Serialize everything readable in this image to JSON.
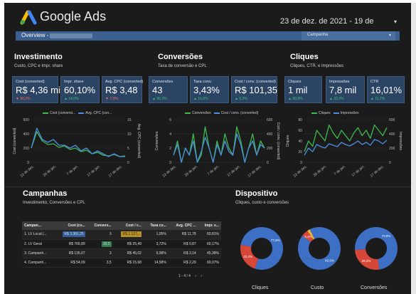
{
  "header": {
    "brand": "Google Ads",
    "date_range": "23 de dez. de 2021 - 19 de",
    "caret": "▾"
  },
  "filters": {
    "overview_label": "Overview -",
    "campaign_dropdown": "Campanha",
    "caret": "▾"
  },
  "sections": {
    "investimento": {
      "title": "Investimento",
      "subtitle": "Custo, CPC e Impr. share"
    },
    "conversoes": {
      "title": "Conversões",
      "subtitle": "Taxa de conversão e CPL"
    },
    "cliques": {
      "title": "Cliques",
      "subtitle": "Cliques, CTR, e Impressões"
    },
    "campanhas": {
      "title": "Campanhas",
      "subtitle": "Investimento, Conversões e CPL"
    },
    "dispositivo": {
      "title": "Dispositivo",
      "subtitle": "Cliques, custo e conversões"
    }
  },
  "kpis": [
    {
      "label": "Cost (converted)",
      "value": "R$ 4,36 mil",
      "delta": "▼ 60,2%",
      "dir": "down"
    },
    {
      "label": "Impr. share",
      "value": "60,10%",
      "delta": "▲ 14,0%",
      "dir": "up"
    },
    {
      "label": "Avg. CPC (converted)",
      "value": "R$ 3,48",
      "delta": "▼ 7,0%",
      "dir": "down"
    },
    {
      "label": "Conversões",
      "value": "43",
      "delta": "▲ 90,3%",
      "dir": "up"
    },
    {
      "label": "Taxa conv.",
      "value": "3,43%",
      "delta": "▲ 15,0%",
      "dir": "up"
    },
    {
      "label": "Cost / conv. (converted)",
      "value": "R$ 101,35",
      "delta": "▲ 6,3%",
      "dir": "up"
    },
    {
      "label": "Cliques",
      "value": "1 mil",
      "delta": "▲ 99,9%",
      "dir": "up"
    },
    {
      "label": "Impressões",
      "value": "7,8 mil",
      "delta": "▲ 32,0%",
      "dir": "up"
    },
    {
      "label": "CTR",
      "value": "16,01%",
      "delta": "▲ 11,7%",
      "dir": "up"
    }
  ],
  "chart_data": [
    {
      "type": "line",
      "series": [
        {
          "name": "Cost (conversi...",
          "color": "#3fb950",
          "values": [
            200,
            430,
            300,
            250,
            260,
            210,
            230,
            180,
            200,
            150,
            170,
            120,
            140,
            100,
            90,
            110,
            80,
            90
          ]
        },
        {
          "name": "Avg. CPC (con...",
          "color": "#4a8fe0",
          "values": [
            5,
            12,
            8,
            7,
            8,
            6,
            6,
            5,
            6,
            4,
            5,
            3,
            4,
            3,
            2,
            3,
            2,
            2
          ]
        }
      ],
      "x_ticks": [
        "23 de dez.",
        "28 de jan.",
        "7 de jan.",
        "17 de jan.",
        "17 de dez."
      ],
      "ylabel": "Cost (converted)",
      "ylim": [
        0,
        600
      ],
      "y_ticks": [
        "600",
        "400",
        "200",
        "0"
      ],
      "y2label": "Avg. CPC (converted)",
      "y2lim": [
        0,
        15
      ],
      "y2_ticks": [
        "15",
        "10",
        "5",
        "0"
      ]
    },
    {
      "type": "line",
      "series": [
        {
          "name": "Conversões",
          "color": "#3fb950",
          "values": [
            1,
            3,
            0,
            2,
            1,
            4,
            0,
            1,
            5,
            2,
            0,
            3,
            1,
            4,
            2,
            1,
            5,
            3,
            0,
            2,
            4,
            1,
            3,
            2
          ]
        },
        {
          "name": "Cost / conv. (converted)",
          "color": "#4a8fe0",
          "values": [
            100,
            250,
            0,
            200,
            100,
            300,
            0,
            150,
            350,
            200,
            0,
            250,
            100,
            300,
            150,
            100,
            400,
            250,
            0,
            200,
            300,
            100,
            250,
            200
          ]
        }
      ],
      "x_ticks": [
        "23 de dez.",
        "28 de jan.",
        "7 de jan.",
        "17 de jan.",
        "17 de dez."
      ],
      "ylabel": "Conversões",
      "ylim": [
        0,
        6
      ],
      "y_ticks": [
        "6",
        "4",
        "2",
        "0"
      ],
      "y2label": "Cost / conv. (converted)",
      "y2lim": [
        0,
        600
      ],
      "y2_ticks": [
        "600",
        "400",
        "200",
        "0"
      ]
    },
    {
      "type": "line",
      "series": [
        {
          "name": "Cliques",
          "color": "#3fb950",
          "values": [
            20,
            40,
            30,
            60,
            50,
            40,
            70,
            55,
            45,
            60,
            50,
            40,
            55,
            65,
            50,
            60,
            45,
            70,
            60,
            50,
            65
          ]
        },
        {
          "name": "Impressões",
          "color": "#4a8fe0",
          "values": [
            100,
            200,
            150,
            250,
            220,
            200,
            260,
            240,
            220,
            280,
            250,
            230,
            260,
            300,
            250,
            280,
            240,
            320,
            300,
            260,
            310
          ]
        }
      ],
      "x_ticks": [
        "23 de dez.",
        "28 de jan.",
        "7 de jan.",
        "17 de jan.",
        "17 de dez."
      ],
      "ylabel": "Cliques",
      "ylim": [
        0,
        80
      ],
      "y_ticks": [
        "80",
        "60",
        "40",
        "20",
        "0"
      ],
      "y2label": "Impressões",
      "y2lim": [
        0,
        600
      ],
      "y2_ticks": [
        "600",
        "400",
        "200",
        "0"
      ]
    },
    {
      "type": "pie",
      "label": "Cliques",
      "slices": [
        {
          "value": 77.6,
          "label": "77,6%",
          "color": "#3d6fc4"
        },
        {
          "value": 22.4,
          "label": "22,4%",
          "color": "#d6473a"
        }
      ]
    },
    {
      "type": "pie",
      "label": "Custo",
      "slices": [
        {
          "value": 92.6,
          "label": "92,6%",
          "color": "#3d6fc4"
        },
        {
          "value": 5.4,
          "label": "5,4%",
          "color": "#d6473a"
        },
        {
          "value": 2.0,
          "label": "",
          "color": "#e8b43a"
        }
      ]
    },
    {
      "type": "pie",
      "label": "Conversões",
      "slices": [
        {
          "value": 73.8,
          "label": "73,8%",
          "color": "#3d6fc4"
        },
        {
          "value": 26.2,
          "label": "26,2%",
          "color": "#d6473a"
        }
      ]
    }
  ],
  "table": {
    "headers": [
      "Campan...",
      "Cost (co...",
      "Convers...",
      "Cost / c...",
      "Taxa co...",
      "Avg. CPC ...",
      "Impr. s..."
    ],
    "rows": [
      [
        "1.  LV Local |...",
        "R$ 3.381,25",
        "3",
        "R$ 1.127,..",
        "1,05%",
        "R$ 11,78",
        "60,81%"
      ],
      [
        "2.  LV Geral",
        "R$ 766,89",
        "30,5",
        "R$ 25,49",
        "3,72%",
        "R$ 0,87",
        "60,17%"
      ],
      [
        "3.  Campanh...",
        "R$ 135,07",
        "3",
        "R$ 45,02",
        "6,98%",
        "R$ 3,14",
        "45,38%"
      ],
      [
        "4.  Campanh...",
        "R$ 54,09",
        "3,5",
        "R$ 15,68",
        "14,58%",
        "R$ 2,29",
        "69,07%"
      ]
    ],
    "pager": "1 - 4 / 4",
    "prev": "‹",
    "next": "›"
  }
}
